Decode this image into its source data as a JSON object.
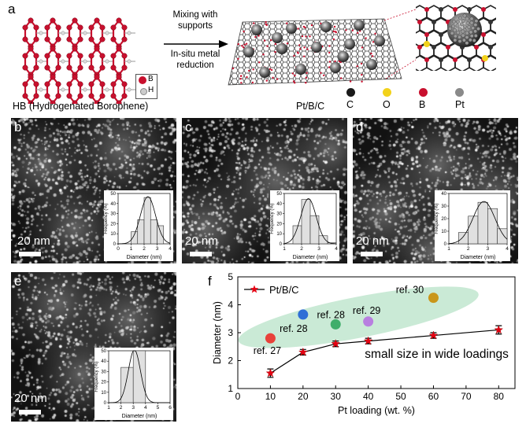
{
  "panel_a": {
    "label": "a",
    "hb_caption": "HB (Hydrogenated Borophene)",
    "hb_legend": [
      "B",
      "H"
    ],
    "arrow_text_top": [
      "Mixing with",
      "supports"
    ],
    "arrow_text_bottom": [
      "In-situ metal",
      "reduction"
    ],
    "product_caption": "Pt/B/C",
    "element_legend": [
      {
        "symbol": "C",
        "color": "#1a1a1a"
      },
      {
        "symbol": "O",
        "color": "#f2d21b"
      },
      {
        "symbol": "B",
        "color": "#c8102e"
      },
      {
        "symbol": "Pt",
        "color": "#8a8a8a"
      }
    ]
  },
  "micrographs": [
    {
      "label": "b",
      "scale": "20 nm"
    },
    {
      "label": "c",
      "scale": "20 nm"
    },
    {
      "label": "d",
      "scale": "20 nm"
    },
    {
      "label": "e",
      "scale": "20 nm"
    }
  ],
  "histograms": [
    {
      "panel": "b",
      "xlabel": "Diameter (nm)",
      "ylabel": "Frequency (%)",
      "xticks": [
        "0",
        "1",
        "2",
        "3",
        "4"
      ],
      "yticks": [
        "0",
        "10",
        "20",
        "30",
        "40",
        "50"
      ],
      "bins": [
        1.25,
        1.75,
        2.25,
        2.75,
        3.25
      ],
      "values": [
        12,
        24,
        46,
        24,
        18
      ]
    },
    {
      "panel": "c",
      "xlabel": "Diameter (nm)",
      "ylabel": "Frequency (%)",
      "xticks": [
        "1",
        "2",
        "3",
        "4"
      ],
      "yticks": [
        "0",
        "10",
        "20",
        "30",
        "40",
        "50"
      ],
      "bins": [
        1.75,
        2.25,
        2.75,
        3.25,
        3.75
      ],
      "values": [
        18,
        44,
        28,
        8,
        1
      ]
    },
    {
      "panel": "d",
      "xlabel": "Diameter (nm)",
      "ylabel": "Frequency (%)",
      "xticks": [
        "1",
        "2",
        "3",
        "4"
      ],
      "yticks": [
        "0",
        "10",
        "20",
        "30",
        "40"
      ],
      "bins": [
        1.75,
        2.25,
        2.75,
        3.25,
        3.75
      ],
      "values": [
        9,
        22,
        33,
        28,
        12
      ]
    },
    {
      "panel": "e",
      "xlabel": "Diameter (nm)",
      "ylabel": "Frequency (%)",
      "xticks": [
        "1",
        "2",
        "3",
        "4",
        "5",
        "6"
      ],
      "yticks": [
        "0",
        "10",
        "20",
        "30",
        "40",
        "50"
      ],
      "bins": [
        2.5,
        3.5
      ],
      "values": [
        34,
        50
      ]
    }
  ],
  "chart_data": {
    "type": "scatter",
    "panel_label": "f",
    "xlabel": "Pt loading (wt. %)",
    "ylabel": "Diameter (nm)",
    "xlim": [
      0,
      85
    ],
    "ylim": [
      1,
      5
    ],
    "xticks": [
      0,
      10,
      20,
      30,
      40,
      50,
      60,
      70,
      80
    ],
    "yticks": [
      1,
      2,
      3,
      4,
      5
    ],
    "series": [
      {
        "name": "Pt/B/C",
        "color": "#000000",
        "marker_color": "#e60012",
        "x": [
          10,
          20,
          30,
          40,
          60,
          80
        ],
        "y": [
          1.55,
          2.3,
          2.6,
          2.7,
          2.9,
          3.1
        ],
        "err": [
          0.15,
          0.1,
          0.1,
          0.1,
          0.1,
          0.15
        ]
      }
    ],
    "references": [
      {
        "label": "ref. 27",
        "x": 10,
        "y": 2.8,
        "color": "#e8423a"
      },
      {
        "label": "ref. 28",
        "x": 20,
        "y": 3.65,
        "color": "#2f6fd6"
      },
      {
        "label": "ref. 28",
        "x": 30,
        "y": 3.3,
        "color": "#3fae6a"
      },
      {
        "label": "ref. 29",
        "x": 40,
        "y": 3.4,
        "color": "#b87fe0"
      },
      {
        "label": "ref. 30",
        "x": 60,
        "y": 4.25,
        "color": "#c9961a"
      }
    ],
    "annotation": "small size in wide loadings",
    "legend_position": "top-left"
  }
}
